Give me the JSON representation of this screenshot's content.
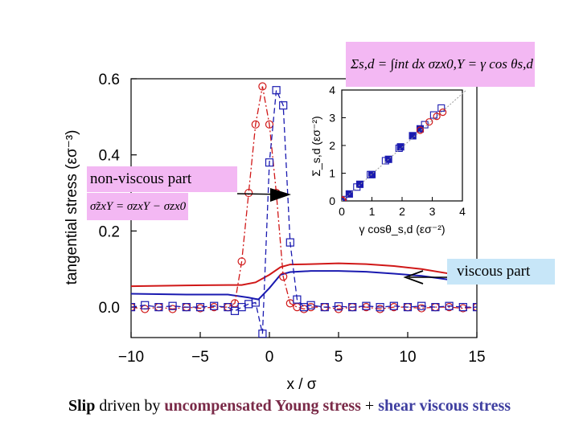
{
  "chart_data": {
    "type": "line",
    "xlabel": "x / σ",
    "ylabel": "tangential stress (εσ⁻³)",
    "xlim": [
      -10,
      15
    ],
    "ylim": [
      -0.08,
      0.6
    ],
    "x_ticks": [
      "−10",
      "−5",
      "0",
      "5",
      "10",
      "15"
    ],
    "y_ticks": [
      "0.0",
      "0.2",
      "0.4",
      "0.6"
    ],
    "series": [
      {
        "style": "red-solid",
        "color": "#d01818",
        "x": [
          -10,
          -6,
          -3,
          -2,
          -1,
          0,
          0.8,
          1.5,
          3,
          5,
          7,
          9,
          11,
          13,
          15
        ],
        "y": [
          0.055,
          0.057,
          0.058,
          0.058,
          0.065,
          0.085,
          0.105,
          0.112,
          0.113,
          0.115,
          0.113,
          0.108,
          0.1,
          0.088,
          0.075
        ]
      },
      {
        "style": "blue-solid",
        "color": "#1a1ab0",
        "x": [
          -10,
          -6,
          -3,
          -1.5,
          -0.8,
          0,
          0.8,
          1.5,
          3,
          5,
          7,
          9,
          11,
          13,
          15
        ],
        "y": [
          0.035,
          0.033,
          0.033,
          0.025,
          0.02,
          0.05,
          0.085,
          0.092,
          0.095,
          0.095,
          0.093,
          0.088,
          0.082,
          0.072,
          0.062
        ]
      },
      {
        "style": "red-dashdot-circles",
        "color": "#d01818",
        "x": [
          -10,
          -9,
          -8,
          -7,
          -6,
          -5,
          -4,
          -3,
          -2.5,
          -2,
          -1.5,
          -1,
          -0.5,
          0,
          0.5,
          1,
          1.5,
          2,
          2.5,
          3,
          4,
          5,
          6,
          7,
          8,
          9,
          10,
          11,
          12,
          13,
          14,
          15
        ],
        "y": [
          0.0,
          -0.005,
          0.0,
          -0.005,
          0.0,
          -0.003,
          0.0,
          0.0,
          0.01,
          0.12,
          0.3,
          0.48,
          0.58,
          0.48,
          0.3,
          0.08,
          0.01,
          0.0,
          -0.005,
          0.0,
          0.0,
          -0.005,
          0.0,
          0.0,
          -0.005,
          0.0,
          0.0,
          -0.003,
          0.0,
          0.0,
          -0.003,
          0.0
        ]
      },
      {
        "style": "blue-dashed-squares",
        "color": "#1a1ab0",
        "x": [
          -10,
          -9,
          -8,
          -7,
          -6,
          -5,
          -4,
          -3,
          -2.5,
          -2,
          -1.5,
          -1,
          -0.5,
          0,
          0.5,
          1,
          1.5,
          2,
          2.5,
          3,
          4,
          5,
          6,
          7,
          8,
          9,
          10,
          11,
          12,
          13,
          14,
          15
        ],
        "y": [
          0.0,
          0.005,
          0.0,
          0.003,
          0.0,
          0.0,
          0.003,
          0.0,
          -0.01,
          0.0,
          0.008,
          0.012,
          -0.07,
          0.38,
          0.57,
          0.53,
          0.17,
          0.02,
          0.0,
          0.005,
          0.0,
          0.002,
          0.0,
          0.003,
          0.0,
          0.003,
          0.0,
          0.003,
          0.0,
          0.003,
          0.0,
          0.0
        ]
      }
    ],
    "inset": {
      "type": "scatter",
      "xlabel": "γ cosθ_s,d (εσ⁻²)",
      "ylabel": "Σ_s,d (εσ⁻²)",
      "xlim": [
        0,
        4
      ],
      "ylim": [
        0,
        4
      ],
      "x_ticks": [
        "0",
        "1",
        "2",
        "3",
        "4"
      ],
      "y_ticks": [
        "0",
        "1",
        "2",
        "3",
        "4"
      ],
      "series": [
        {
          "style": "open-blue-squares",
          "color": "#1a1ab0",
          "x": [
            0.05,
            0.5,
            0.95,
            1.45,
            1.9,
            2.35,
            2.75,
            3.05,
            3.3
          ],
          "y": [
            0.05,
            0.5,
            0.95,
            1.45,
            1.9,
            2.35,
            2.75,
            3.1,
            3.35
          ]
        },
        {
          "style": "filled-blue-squares",
          "color": "#1a1ab0",
          "x": [
            0.25,
            0.6,
            1.0,
            1.55,
            1.95,
            2.35,
            2.6
          ],
          "y": [
            0.25,
            0.6,
            0.95,
            1.5,
            1.95,
            2.35,
            2.6
          ]
        },
        {
          "style": "open-red-circles",
          "color": "#d01818",
          "x": [
            0.0,
            2.6,
            2.9,
            3.15,
            3.35
          ],
          "y": [
            0.0,
            2.55,
            2.85,
            3.05,
            3.2
          ]
        }
      ]
    }
  },
  "annotations": {
    "equation_top": "Σs,d = ∫int dx σzx0,Y = γ cos θs,d",
    "nonviscous_label": "non-viscous part",
    "nonviscous_equation": "σ̃zxY = σzxY − σzx0",
    "viscous_label": "viscous part"
  },
  "caption": {
    "part1": "Slip",
    "part2": " driven by ",
    "part3": "uncompensated Young stress",
    "part4": " + ",
    "part5": "shear viscous stress"
  }
}
